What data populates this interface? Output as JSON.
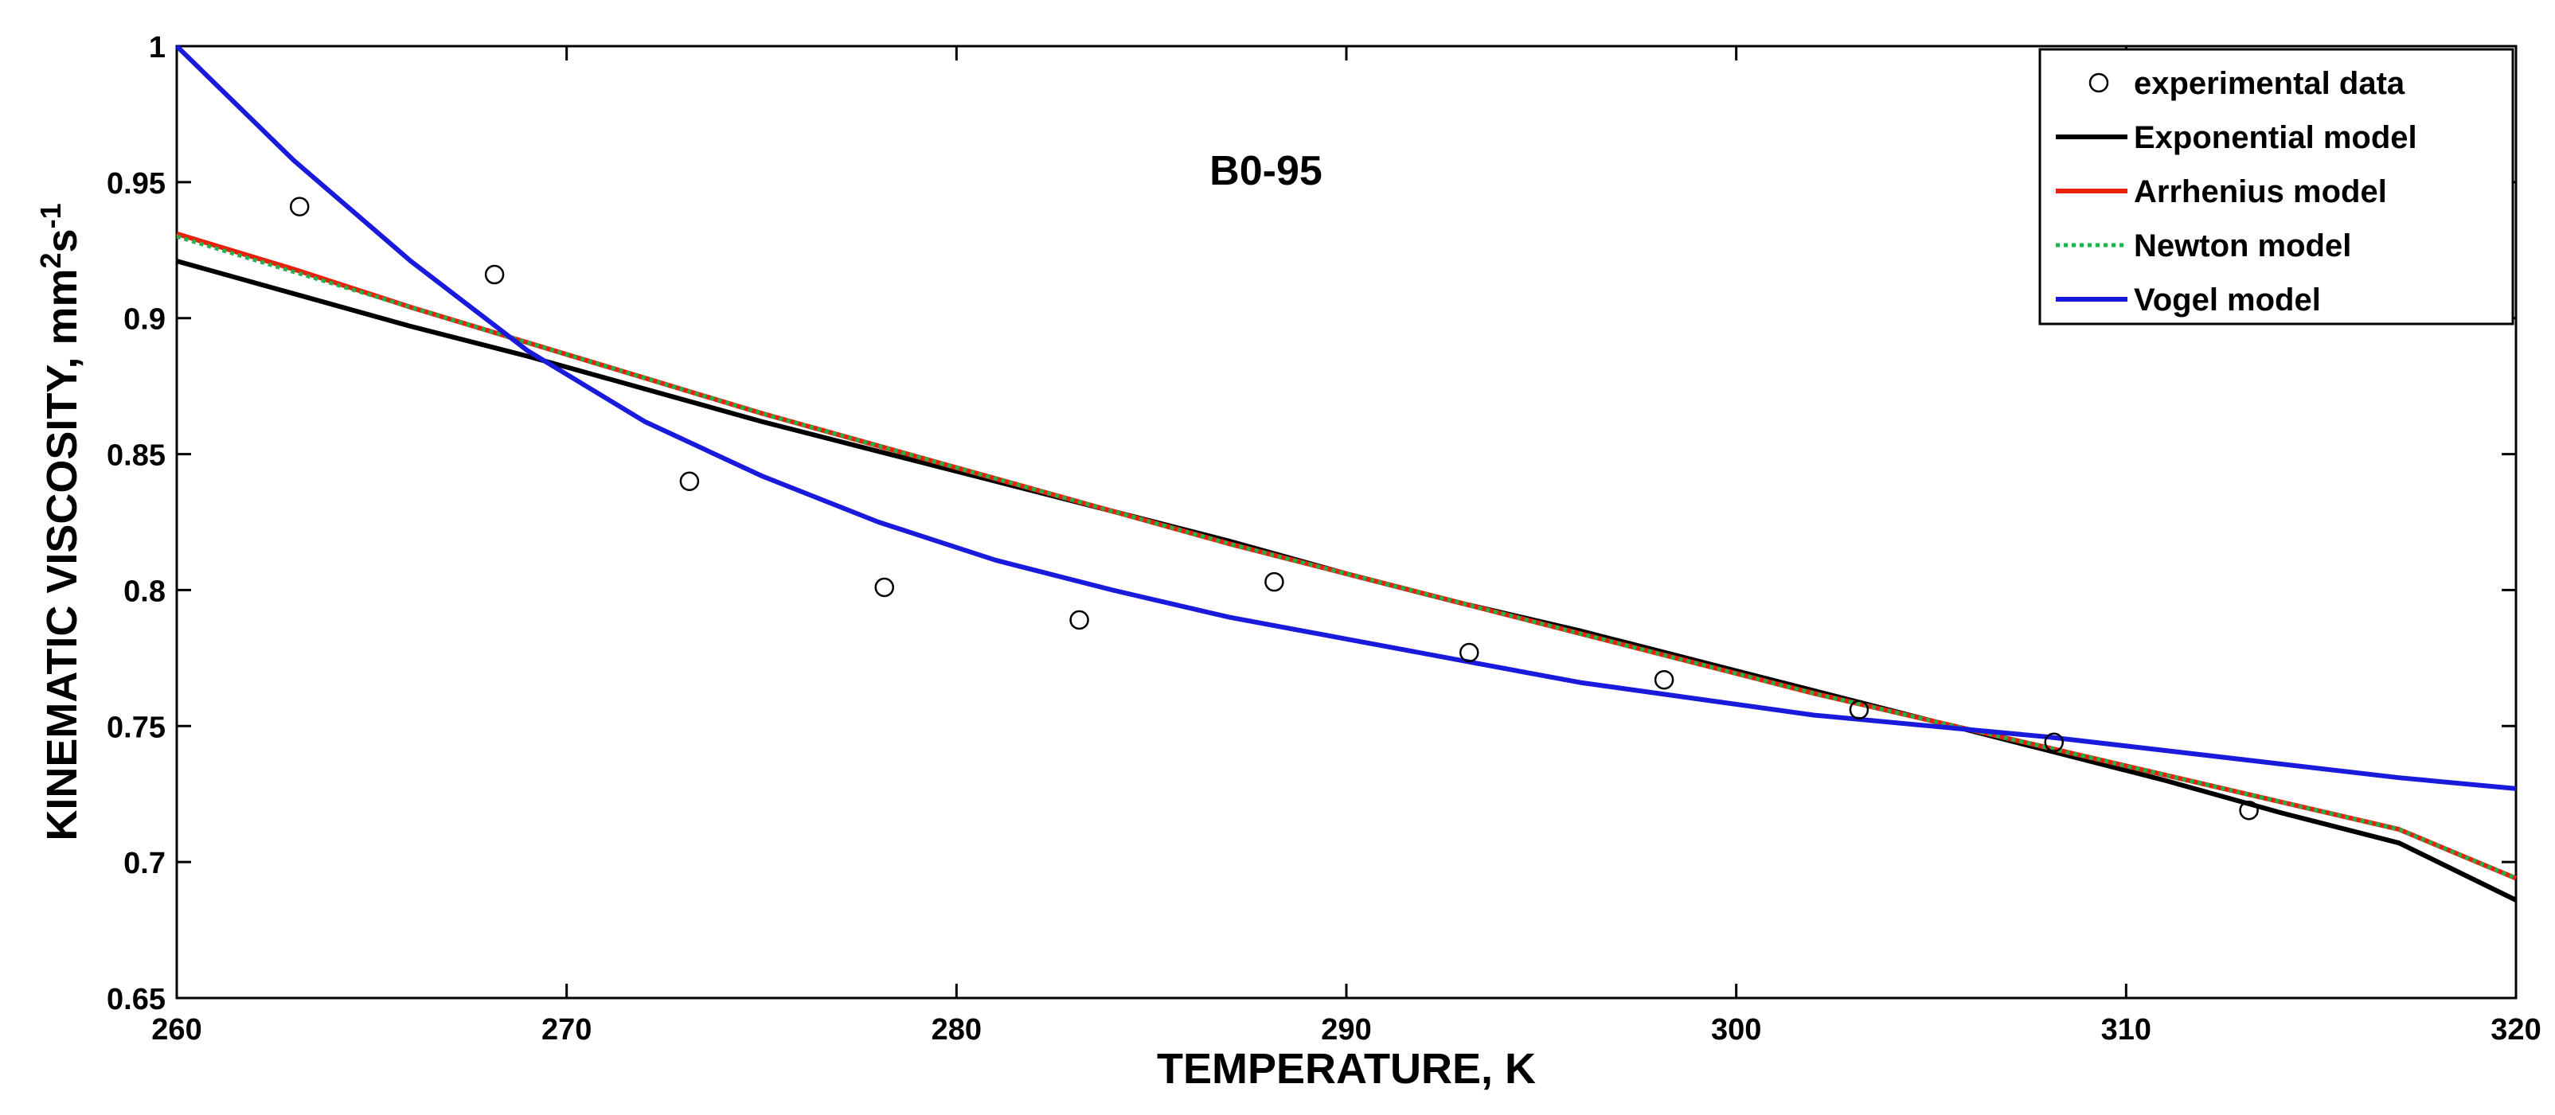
{
  "chart_data": {
    "type": "line",
    "title": "",
    "annotation": "B0-95",
    "xlabel": "TEMPERATURE, K",
    "ylabel": "KINEMATIC VISCOSITY, mm²s⁻¹",
    "ylabel_parts": {
      "main": "KINEMATIC VISCOSITY, mm",
      "sup1": "2",
      "mid": "s",
      "sup2": "-1"
    },
    "xlim": [
      260,
      320
    ],
    "ylim": [
      0.65,
      1.0
    ],
    "x_ticks": [
      260,
      270,
      280,
      290,
      300,
      310,
      320
    ],
    "x_tick_labels": [
      "260",
      "270",
      "280",
      "290",
      "300",
      "310",
      "320"
    ],
    "y_ticks": [
      0.65,
      0.7,
      0.75,
      0.8,
      0.85,
      0.9,
      0.95,
      1.0
    ],
    "y_tick_labels": [
      "0.65",
      "0.7",
      "0.75",
      "0.8",
      "0.85",
      "0.9",
      "0.95",
      "1"
    ],
    "grid": false,
    "legend_position": "top-right",
    "x": [
      260,
      263,
      266,
      269,
      272,
      275,
      278,
      281,
      284,
      287,
      290,
      293,
      296,
      299,
      302,
      305,
      308,
      311,
      314,
      317,
      320
    ],
    "scatter": {
      "name": "experimental data",
      "x": [
        263.15,
        268.15,
        273.15,
        278.15,
        283.15,
        288.15,
        293.15,
        298.15,
        303.15,
        308.15,
        313.15
      ],
      "y": [
        0.941,
        0.916,
        0.84,
        0.801,
        0.789,
        0.803,
        0.777,
        0.767,
        0.756,
        0.744,
        0.719
      ]
    },
    "series": [
      {
        "name": "Exponential model",
        "color": "#000000",
        "dashed": false,
        "values": [
          0.921,
          0.909,
          0.897,
          0.886,
          0.874,
          0.862,
          0.851,
          0.84,
          0.829,
          0.818,
          0.806,
          0.795,
          0.785,
          0.774,
          0.763,
          0.752,
          0.741,
          0.73,
          0.718,
          0.707,
          0.686
        ]
      },
      {
        "name": "Arrhenius model",
        "color": "#e8200c",
        "dashed": false,
        "values": [
          0.931,
          0.918,
          0.904,
          0.891,
          0.878,
          0.865,
          0.853,
          0.841,
          0.829,
          0.817,
          0.806,
          0.795,
          0.784,
          0.773,
          0.762,
          0.752,
          0.742,
          0.732,
          0.722,
          0.712,
          0.694
        ]
      },
      {
        "name": "Newton model",
        "color": "#22b14c",
        "dashed": true,
        "values": [
          0.93,
          0.917,
          0.904,
          0.891,
          0.878,
          0.865,
          0.853,
          0.841,
          0.829,
          0.817,
          0.806,
          0.795,
          0.784,
          0.773,
          0.762,
          0.752,
          0.742,
          0.732,
          0.722,
          0.712,
          0.694
        ]
      },
      {
        "name": "Vogel model",
        "color": "#1a1adc",
        "dashed": false,
        "values": [
          1.0,
          0.958,
          0.921,
          0.888,
          0.862,
          0.842,
          0.825,
          0.811,
          0.8,
          0.79,
          0.782,
          0.774,
          0.766,
          0.76,
          0.754,
          0.75,
          0.746,
          0.741,
          0.736,
          0.731,
          0.727
        ]
      }
    ]
  }
}
